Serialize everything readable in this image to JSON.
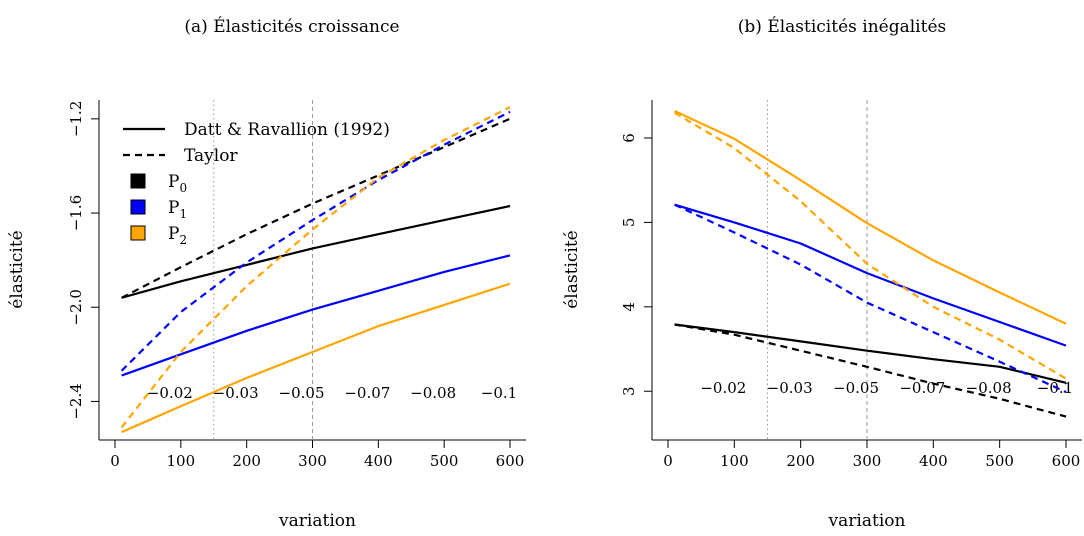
{
  "chart_data": [
    {
      "type": "line",
      "title": "(a) Élasticités croissance",
      "xlabel": "variation",
      "ylabel": "élasticité",
      "xlim": [
        0,
        600
      ],
      "ylim": [
        -2.5,
        -1.12
      ],
      "xticks": [
        "0",
        "100",
        "200",
        "300",
        "400",
        "500",
        "600"
      ],
      "yticks": [
        "−2.4",
        "−2.0",
        "−1.6",
        "−1.2"
      ],
      "inner_labels": [
        "−0.02",
        "−0.03",
        "−0.05",
        "−0.07",
        "−0.08",
        "−0.1"
      ],
      "vlines": [
        150,
        300
      ],
      "legend": {
        "position": "top-left",
        "lines": [
          "Datt & Ravallion (1992)",
          "Taylor"
        ],
        "colors": [
          {
            "label": "P",
            "sub": "0",
            "color": "#000000"
          },
          {
            "label": "P",
            "sub": "1",
            "color": "#0000ff"
          },
          {
            "label": "P",
            "sub": "2",
            "color": "#ffa500"
          }
        ]
      },
      "x": [
        10,
        100,
        200,
        300,
        400,
        500,
        600
      ],
      "series": [
        {
          "name": "P0 Datt & Ravallion (1992)",
          "color": "#000000",
          "dash": false,
          "values": [
            -1.96,
            -1.89,
            -1.82,
            -1.75,
            -1.69,
            -1.63,
            -1.57
          ]
        },
        {
          "name": "P1 Datt & Ravallion (1992)",
          "color": "#0000ff",
          "dash": false,
          "values": [
            -2.29,
            -2.2,
            -2.1,
            -2.01,
            -1.93,
            -1.85,
            -1.78
          ]
        },
        {
          "name": "P2 Datt & Ravallion (1992)",
          "color": "#ffa500",
          "dash": false,
          "values": [
            -2.53,
            -2.42,
            -2.3,
            -2.19,
            -2.08,
            -1.99,
            -1.9
          ]
        },
        {
          "name": "P0 Taylor",
          "color": "#000000",
          "dash": true,
          "values": [
            -1.96,
            -1.83,
            -1.69,
            -1.56,
            -1.44,
            -1.32,
            -1.2
          ]
        },
        {
          "name": "P1 Taylor",
          "color": "#0000ff",
          "dash": true,
          "values": [
            -2.27,
            -2.02,
            -1.81,
            -1.63,
            -1.46,
            -1.31,
            -1.17
          ]
        },
        {
          "name": "P2 Taylor",
          "color": "#ffa500",
          "dash": true,
          "values": [
            -2.51,
            -2.19,
            -1.91,
            -1.67,
            -1.45,
            -1.29,
            -1.15
          ]
        }
      ]
    },
    {
      "type": "line",
      "title": "(b) Élasticités inégalités",
      "xlabel": "variation",
      "ylabel": "élasticité",
      "xlim": [
        0,
        600
      ],
      "ylim": [
        2.6,
        6.45
      ],
      "xticks": [
        "0",
        "100",
        "200",
        "300",
        "400",
        "500",
        "600"
      ],
      "yticks": [
        "3",
        "4",
        "5",
        "6"
      ],
      "inner_labels": [
        "−0.02",
        "−0.03",
        "−0.05",
        "−0.07",
        "−0.08",
        "−0.1"
      ],
      "vlines": [
        150,
        300
      ],
      "x": [
        10,
        100,
        200,
        300,
        400,
        500,
        600
      ],
      "series": [
        {
          "name": "P0 Datt & Ravallion (1992)",
          "color": "#000000",
          "dash": false,
          "values": [
            3.79,
            3.7,
            3.59,
            3.48,
            3.38,
            3.29,
            3.1
          ]
        },
        {
          "name": "P1 Datt & Ravallion (1992)",
          "color": "#0000ff",
          "dash": false,
          "values": [
            5.21,
            5.0,
            4.75,
            4.4,
            4.1,
            3.82,
            3.54
          ]
        },
        {
          "name": "P2 Datt & Ravallion (1992)",
          "color": "#ffa500",
          "dash": false,
          "values": [
            6.32,
            5.99,
            5.5,
            4.99,
            4.55,
            4.17,
            3.8
          ]
        },
        {
          "name": "P0 Taylor",
          "color": "#000000",
          "dash": true,
          "values": [
            3.79,
            3.67,
            3.48,
            3.29,
            3.09,
            2.91,
            2.7
          ]
        },
        {
          "name": "P1 Taylor",
          "color": "#0000ff",
          "dash": true,
          "values": [
            5.21,
            4.88,
            4.5,
            4.05,
            3.7,
            3.35,
            2.99
          ]
        },
        {
          "name": "P2 Taylor",
          "color": "#ffa500",
          "dash": true,
          "values": [
            6.3,
            5.88,
            5.25,
            4.51,
            4.0,
            3.61,
            3.15
          ]
        }
      ]
    }
  ]
}
